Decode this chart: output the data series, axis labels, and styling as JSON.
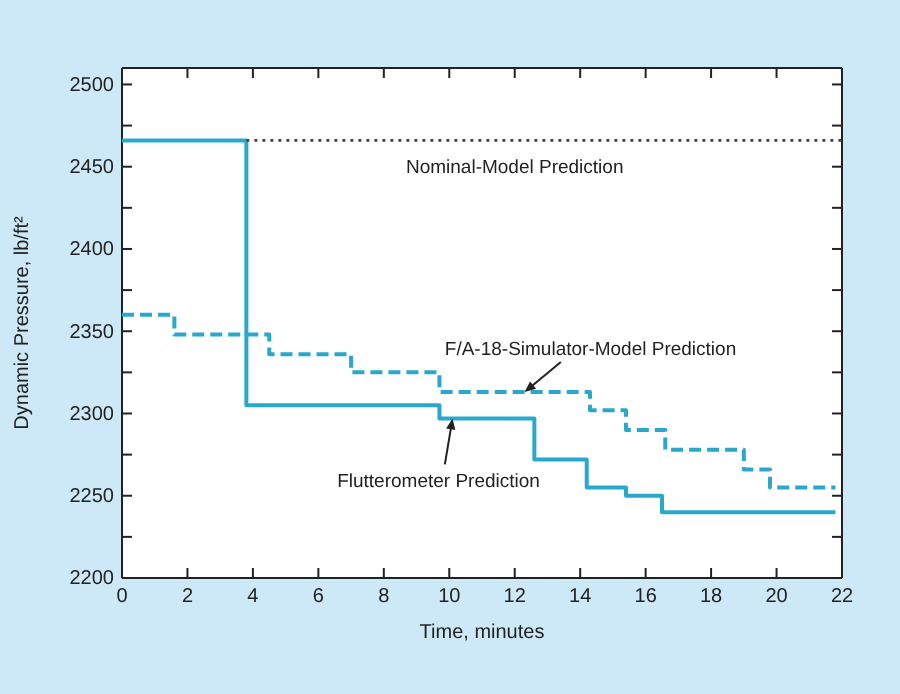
{
  "chart_data": {
    "type": "step",
    "xlabel": "Time, minutes",
    "ylabel": "Dynamic Pressure, lb/ft²",
    "xlim": [
      0,
      22
    ],
    "xticks": [
      0,
      2,
      4,
      6,
      8,
      10,
      12,
      14,
      16,
      18,
      20,
      22
    ],
    "ylim": [
      2200,
      2510
    ],
    "yticks": [
      2200,
      {
        "value": 2225,
        "label": null
      },
      2250,
      {
        "value": 2275,
        "label": null
      },
      2300,
      {
        "value": 2325,
        "label": null
      },
      2350,
      {
        "value": 2375,
        "label": null
      },
      2400,
      {
        "value": 2425,
        "label": null
      },
      2450,
      {
        "value": 2475,
        "label": null
      },
      2500
    ],
    "grid": false,
    "series": [
      {
        "color": "#29a8cc",
        "line_style": "solid",
        "x": [
          0,
          3.8,
          9.7,
          12.6,
          14.2,
          15.4,
          16.5,
          21.8
        ],
        "values": [
          2466,
          2305,
          2297,
          2272,
          2255,
          2250,
          2240,
          2240
        ]
      },
      {
        "color": "#29a8cc",
        "line_style": "dashed",
        "x": [
          0,
          1.6,
          4.5,
          7.0,
          9.7,
          14.3,
          15.4,
          16.6,
          19.0,
          19.8,
          21.8
        ],
        "values": [
          2360,
          2348,
          2336,
          2325,
          2313,
          2302,
          2290,
          2278,
          2266,
          2255,
          2255
        ]
      },
      {
        "type": "line",
        "color": "#444444",
        "line_style": "dotted",
        "x": [
          3.8,
          22
        ],
        "values": [
          2466,
          2466
        ]
      }
    ],
    "annotations": [
      {
        "text": "Nominal-Model Prediction",
        "x": 12,
        "y": 2466
      },
      {
        "text": "F/A-18-Simulator-Model Prediction",
        "x": 12.3,
        "y": 2313
      },
      {
        "text": "Flutterometer Prediction",
        "x": 10.1,
        "y": 2297
      }
    ]
  }
}
